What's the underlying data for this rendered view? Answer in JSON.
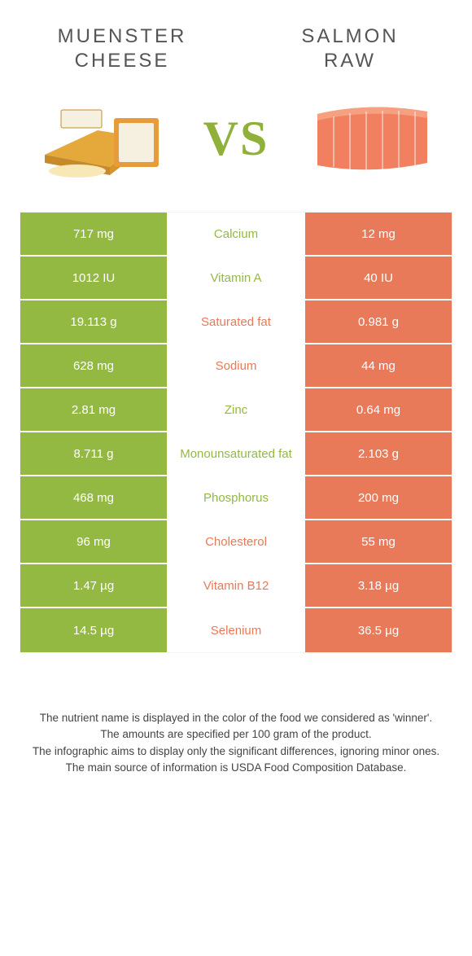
{
  "header": {
    "left_title_line1": "MUENSTER",
    "left_title_line2": "CHEESE",
    "right_title_line1": "SALMON",
    "right_title_line2": "RAW",
    "vs": "VS"
  },
  "colors": {
    "left": "#93b943",
    "right": "#e87959",
    "mid_bg": "#ffffff",
    "text_white": "#ffffff"
  },
  "nutrients": [
    {
      "label": "Calcium",
      "left": "717 mg",
      "right": "12 mg",
      "winner": "left"
    },
    {
      "label": "Vitamin A",
      "left": "1012 IU",
      "right": "40 IU",
      "winner": "left"
    },
    {
      "label": "Saturated fat",
      "left": "19.113 g",
      "right": "0.981 g",
      "winner": "right"
    },
    {
      "label": "Sodium",
      "left": "628 mg",
      "right": "44 mg",
      "winner": "right"
    },
    {
      "label": "Zinc",
      "left": "2.81 mg",
      "right": "0.64 mg",
      "winner": "left"
    },
    {
      "label": "Monounsaturated fat",
      "left": "8.711 g",
      "right": "2.103 g",
      "winner": "left"
    },
    {
      "label": "Phosphorus",
      "left": "468 mg",
      "right": "200 mg",
      "winner": "left"
    },
    {
      "label": "Cholesterol",
      "left": "96 mg",
      "right": "55 mg",
      "winner": "right"
    },
    {
      "label": "Vitamin B12",
      "left": "1.47 µg",
      "right": "3.18 µg",
      "winner": "right"
    },
    {
      "label": "Selenium",
      "left": "14.5 µg",
      "right": "36.5 µg",
      "winner": "right"
    }
  ],
  "footnotes": [
    "The nutrient name is displayed in the color of the food we considered as 'winner'.",
    "The amounts are specified per 100 gram of the product.",
    "The infographic aims to display only the significant differences, ignoring minor ones.",
    "The main source of information is USDA Food Composition Database."
  ]
}
